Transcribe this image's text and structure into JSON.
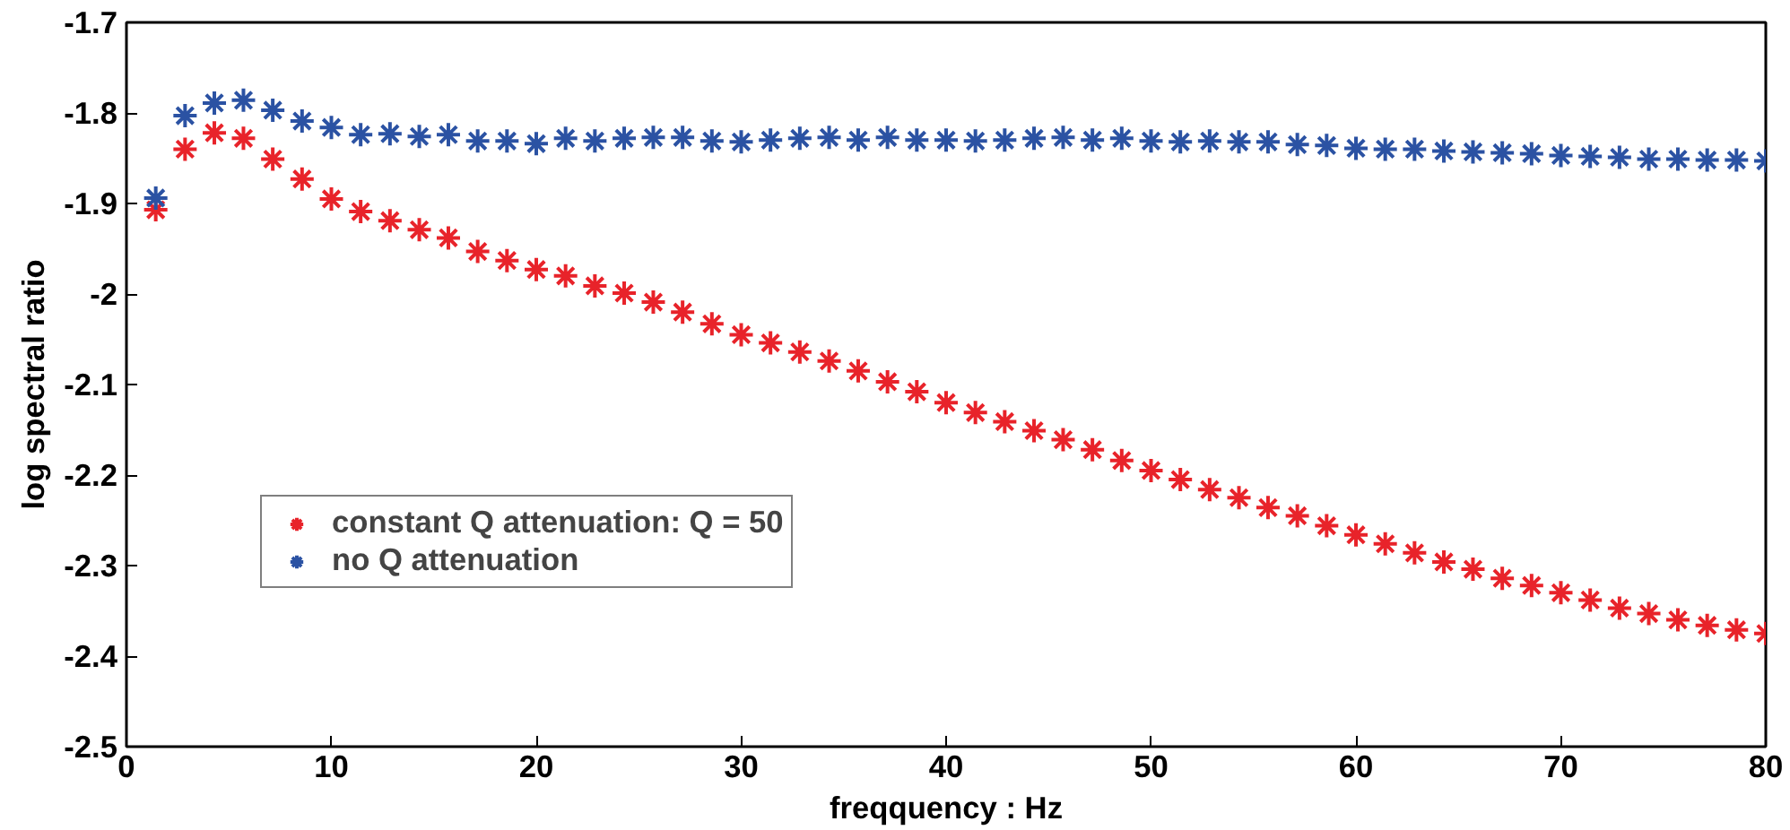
{
  "chart_data": {
    "type": "scatter",
    "xlabel": "freqquency : Hz",
    "ylabel": "log spectral ratio",
    "x": [
      1.43,
      2.86,
      4.29,
      5.71,
      7.14,
      8.57,
      10,
      11.43,
      12.86,
      14.29,
      15.71,
      17.14,
      18.57,
      20,
      21.43,
      22.86,
      24.29,
      25.71,
      27.14,
      28.57,
      30,
      31.43,
      32.86,
      34.29,
      35.71,
      37.14,
      38.57,
      40,
      41.43,
      42.86,
      44.29,
      45.71,
      47.14,
      48.57,
      50,
      51.43,
      52.86,
      54.29,
      55.71,
      57.14,
      58.57,
      60,
      61.43,
      62.86,
      64.29,
      65.71,
      67.14,
      68.57,
      70,
      71.43,
      72.86,
      74.29,
      75.71,
      77.14,
      78.57,
      80
    ],
    "series": [
      {
        "name": "constant Q attenuation: Q = 50",
        "color": "#e8232a",
        "values": [
          -1.907,
          -1.84,
          -1.822,
          -1.828,
          -1.851,
          -1.873,
          -1.895,
          -1.909,
          -1.919,
          -1.929,
          -1.938,
          -1.953,
          -1.963,
          -1.973,
          -1.98,
          -1.991,
          -1.999,
          -2.009,
          -2.02,
          -2.033,
          -2.045,
          -2.054,
          -2.064,
          -2.074,
          -2.085,
          -2.097,
          -2.108,
          -2.12,
          -2.131,
          -2.141,
          -2.151,
          -2.161,
          -2.172,
          -2.184,
          -2.195,
          -2.205,
          -2.216,
          -2.225,
          -2.236,
          -2.245,
          -2.256,
          -2.266,
          -2.276,
          -2.286,
          -2.296,
          -2.304,
          -2.314,
          -2.322,
          -2.33,
          -2.338,
          -2.347,
          -2.353,
          -2.36,
          -2.366,
          -2.371,
          -2.375
        ]
      },
      {
        "name": "no Q attenuation",
        "color": "#2b52a3",
        "values": [
          -1.894,
          -1.803,
          -1.789,
          -1.786,
          -1.797,
          -1.809,
          -1.816,
          -1.824,
          -1.823,
          -1.826,
          -1.824,
          -1.831,
          -1.831,
          -1.834,
          -1.828,
          -1.831,
          -1.828,
          -1.827,
          -1.827,
          -1.831,
          -1.832,
          -1.83,
          -1.828,
          -1.827,
          -1.83,
          -1.827,
          -1.83,
          -1.83,
          -1.831,
          -1.83,
          -1.828,
          -1.827,
          -1.83,
          -1.828,
          -1.831,
          -1.832,
          -1.831,
          -1.832,
          -1.832,
          -1.835,
          -1.836,
          -1.839,
          -1.84,
          -1.84,
          -1.842,
          -1.843,
          -1.844,
          -1.845,
          -1.847,
          -1.848,
          -1.849,
          -1.851,
          -1.851,
          -1.852,
          -1.852,
          -1.853
        ]
      }
    ],
    "xlim": [
      0,
      80
    ],
    "ylim": [
      -2.5,
      -1.7
    ],
    "xticks": [
      0,
      10,
      20,
      30,
      40,
      50,
      60,
      70,
      80
    ],
    "yticks": [
      -2.5,
      -2.4,
      -2.3,
      -2.2,
      -2.1,
      -2,
      -1.9,
      -1.8,
      -1.7
    ],
    "marker": "cross",
    "legend": "bottom left"
  }
}
